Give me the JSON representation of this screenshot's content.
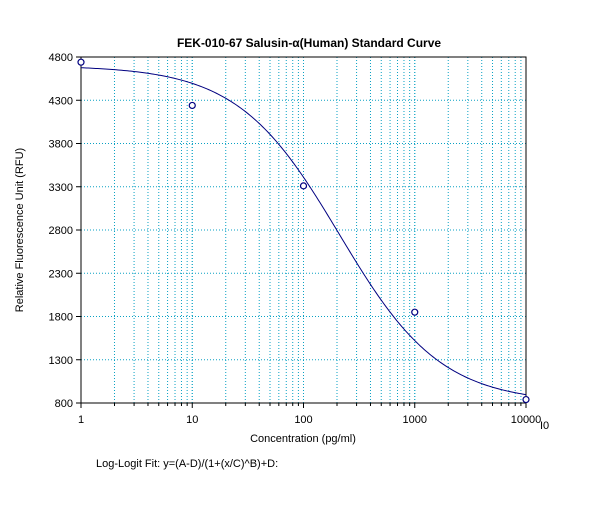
{
  "chart_data": {
    "type": "scatter",
    "title": "FEK-010-67 Salusin-α(Human) Standard Curve",
    "xlabel": "Concentration (pg/ml)",
    "ylabel": "Relative Fluorescence Unit (RFU)",
    "x_scale": "log",
    "xlim": [
      1,
      10000
    ],
    "ylim": [
      800,
      4800
    ],
    "x_ticks": [
      1,
      10,
      100,
      1000,
      10000
    ],
    "x_tick_labels": [
      "1",
      "10",
      "100",
      "1000",
      "10000"
    ],
    "y_ticks": [
      800,
      1300,
      1800,
      2300,
      2800,
      3300,
      3800,
      4300,
      4800
    ],
    "y_tick_labels": [
      "800",
      "1300",
      "1800",
      "2300",
      "2800",
      "3300",
      "3800",
      "4300",
      "4800"
    ],
    "grid": true,
    "stray_label": "I0",
    "fit_label": "Log-Logit Fit:  y=(A-D)/(1+(x/C)^B)+D:",
    "series": [
      {
        "type": "scatter",
        "marker": "open-circle",
        "color": "#000080",
        "x": [
          1,
          10,
          100,
          1000,
          10000
        ],
        "y": [
          4740,
          4240,
          3310,
          1850,
          840
        ]
      },
      {
        "type": "line",
        "color": "#000080",
        "fit": {
          "A": 4700,
          "B": 0.95,
          "C": 210,
          "D": 800
        }
      }
    ],
    "colors": {
      "axis": "#000000",
      "grid": "#0aa1c4",
      "series": "#000080"
    }
  }
}
